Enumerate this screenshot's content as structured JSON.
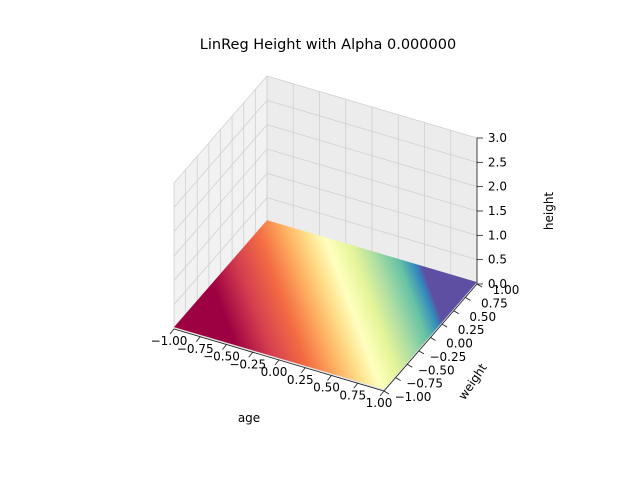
{
  "chart_data": {
    "type": "surface",
    "title": "LinReg Height with Alpha 0.000000",
    "xlabel": "age",
    "ylabel": "weight",
    "zlabel": "height",
    "xlim": [
      -1.0,
      1.0
    ],
    "ylim": [
      -1.0,
      1.0
    ],
    "zlim": [
      0.0,
      3.0
    ],
    "x_ticks": [
      "−1.00",
      "−0.75",
      "−0.50",
      "−0.25",
      "0.00",
      "0.25",
      "0.50",
      "0.75",
      "1.00"
    ],
    "y_ticks": [
      "−1.00",
      "−0.75",
      "−0.50",
      "−0.25",
      "0.00",
      "0.25",
      "0.50",
      "0.75",
      "1.00"
    ],
    "z_ticks": [
      "0.0",
      "0.5",
      "1.0",
      "1.5",
      "2.0",
      "2.5",
      "3.0"
    ],
    "colormap": "Spectral",
    "grid": true,
    "surface": {
      "description_values": "approximately flat plane near height 0",
      "corners": [
        {
          "age": -1.0,
          "weight": -1.0,
          "height": 0.0
        },
        {
          "age": 1.0,
          "weight": -1.0,
          "height": 0.0
        },
        {
          "age": 1.0,
          "weight": 1.0,
          "height": 0.0
        },
        {
          "age": -1.0,
          "weight": 1.0,
          "height": 0.0
        }
      ]
    }
  }
}
